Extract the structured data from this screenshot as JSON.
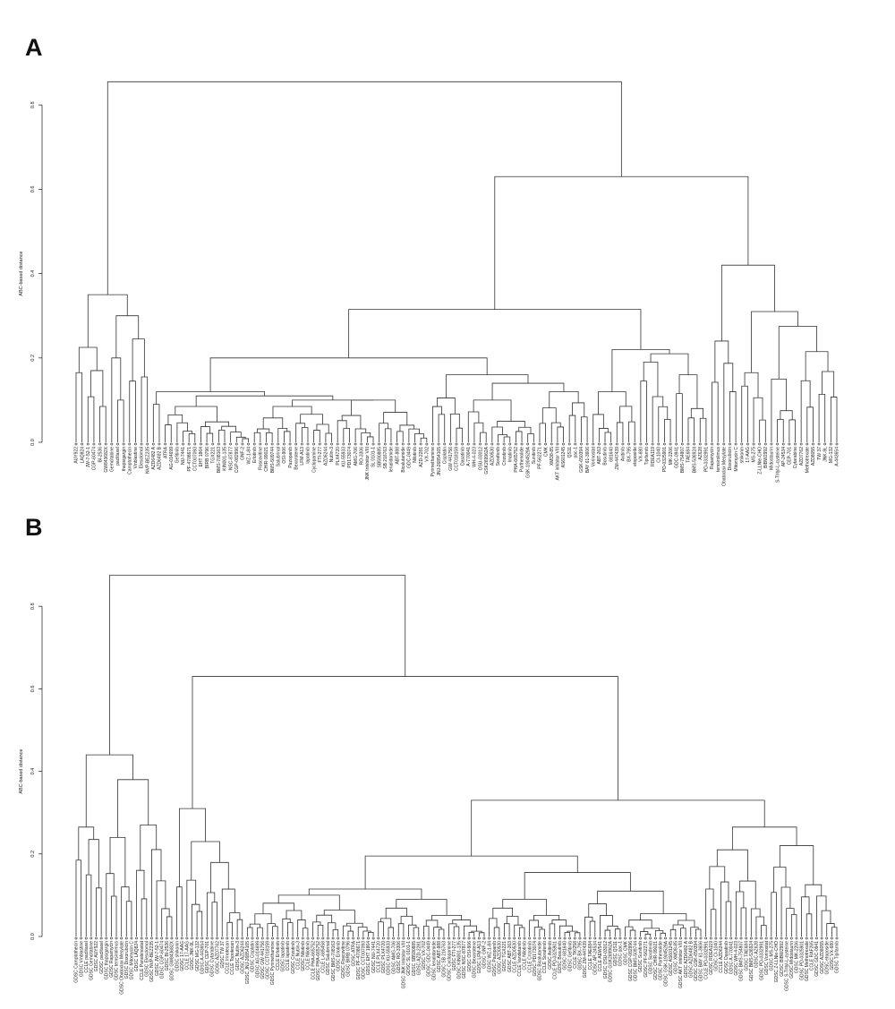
{
  "chart_data": [
    {
      "type": "dendrogram",
      "panel_label": "A",
      "ylabel": "ABC-based distance",
      "ylim": [
        0,
        0.8
      ],
      "yticks": [
        "0.0",
        "0.2",
        "0.4",
        "0.6",
        "0.8"
      ],
      "leaves": [
        "AUY922",
        "LAQ824",
        "JW-7-52-1",
        "CGP-60474",
        "BI-2536",
        "GW843682X",
        "Gemcitabine",
        "paclitaxel",
        "thapsigargin",
        "Camptothecin",
        "Vinblastine",
        "Elesclomol",
        "NVP-BEZ235",
        {
          "t": "AZD6482 A",
          "c": "#f0502a"
        },
        {
          "t": "AZD6482 B",
          "c": "#f0502a"
        },
        "ATRA",
        "AG-014699",
        "Gefitinib",
        "NU-7441",
        "PF-4708671",
        "CCT007093",
        "EHT 1864",
        "BIRB 0796",
        "TGX221",
        "BMS-708163",
        "KIN001-135",
        "NSC-87877",
        "CGP-082996",
        "GNF-2",
        "WZ-1-84",
        "Erlotinib",
        "Roscovitine",
        "CHIR-99021",
        "BMS-509744",
        "Salubrinal",
        "OSI-906",
        "Pazopanib",
        "Bexarotene",
        "LFM-A13",
        "lapatinib",
        "Cyclopamine",
        "FTI-277",
        "AZD6244",
        "Nutlin-3",
        "PLX4720",
        "KU-55933",
        "PD173074",
        "AMG-706",
        "RO-3306",
        "JNK Inhibitor VIII",
        "SL 0101-1",
        "SB590885",
        "SB 216763",
        "lenalidomide",
        "ABT-888",
        "Bicalutamide",
        "GDC-0449",
        "Nilotinib",
        "AZD-2281",
        "VX-702",
        "Pyrimethamine",
        "JNJ-26854165",
        "Cisplatin",
        "GW 441756",
        "CCT018159",
        "Dasatinib",
        "A-770041",
        "WH-4-023",
        "OSU-03012",
        "GSK269962A",
        "AZD0530",
        "Sorafenib",
        "Crizotinib",
        "Imatinib",
        "PHA-665752",
        "Parthenolide",
        "GSK-1904529A",
        "Sunitinib",
        "PF-562271",
        "CMK",
        "XMD8-85",
        "AKT inhibitor VIII",
        "AS601245",
        "QS11",
        "pac-1",
        "GSK-650394",
        "BAY 61-3606",
        "Vorinostat",
        "ABT-263",
        "Bosutinib",
        "681640",
        "ZM-447439",
        "Axitinib",
        "BX-795",
        "etoposide",
        "VX-680",
        "Tipifarnib",
        "RDEA119",
        "CI-1040",
        "PD-0325901",
        "MK-2206",
        "GDC-0941",
        "BMS-754807",
        "TAE684",
        "BMS-536924",
        "AZ628",
        "PD-0332991",
        "Rapamycin",
        "temsirolimus",
        "Obatoclax Mesylate",
        "Doxorubicin",
        "Mitomycin C",
        "shikonin",
        "17-AAG",
        "MS-275",
        "Z-LLNle-CHO",
        "BIBW2992",
        "Midostaurin",
        "S-Trityl-L-cysteine",
        "AP-24534",
        "CEP-701",
        "Cytarabine",
        "AZD7762",
        "Methotrexate",
        "AZD8055",
        "TW 37",
        "JNK-9L",
        "MG-132",
        "A-443654"
      ],
      "tree": {
        "h": 0.855,
        "c": [
          {
            "h": 0.35,
            "c": [
              {
                "h": 0.225,
                "c": [
                  {
                    "h": 0.165,
                    "r": [
                      1,
                      2
                    ]
                  },
                  {
                    "h": 0.17,
                    "r": [
                      3,
                      6
                    ]
                  }
                ]
              },
              {
                "h": 0.3,
                "c": [
                  {
                    "h": 0.2,
                    "r": [
                      7,
                      9
                    ]
                  },
                  {
                    "h": 0.245,
                    "c": [
                      {
                        "h": 0.145,
                        "r": [
                          10,
                          11
                        ]
                      },
                      {
                        "h": 0.155,
                        "r": [
                          12,
                          13
                        ]
                      }
                    ]
                  }
                ]
              }
            ]
          },
          {
            "h": 0.63,
            "c": [
              {
                "h": 0.315,
                "c": [
                  {
                    "h": 0.2,
                    "c": [
                      {
                        "h": 0.12,
                        "c": [
                          {
                            "h": 0.09,
                            "r": [
                              14,
                              15
                            ]
                          },
                          {
                            "h": 0.11,
                            "c": [
                              {
                                "h": 0.085,
                                "r": [
                                  16,
                                  30
                                ]
                              },
                              {
                                "h": 0.1,
                                "c": [
                                  {
                                    "h": 0.085,
                                    "r": [
                                      31,
                                      44
                                    ]
                                  },
                                  {
                                    "h": 0.1,
                                    "r": [
                                      45,
                                      60
                                    ]
                                  }
                                ]
                              }
                            ]
                          }
                        ]
                      },
                      {
                        "h": 0.16,
                        "c": [
                          {
                            "h": 0.105,
                            "r": [
                              61,
                              66
                            ]
                          },
                          {
                            "h": 0.14,
                            "c": [
                              {
                                "h": 0.1,
                                "r": [
                                  67,
                                  78
                                ]
                              },
                              {
                                "h": 0.12,
                                "r": [
                                  79,
                                  87
                                ]
                              }
                            ]
                          }
                        ]
                      }
                    ]
                  },
                  {
                    "h": 0.22,
                    "c": [
                      {
                        "h": 0.12,
                        "r": [
                          88,
                          95
                        ]
                      },
                      {
                        "h": 0.21,
                        "c": [
                          {
                            "h": 0.19,
                            "r": [
                              96,
                              101
                            ]
                          },
                          {
                            "h": 0.16,
                            "r": [
                              102,
                              107
                            ]
                          }
                        ]
                      }
                    ]
                  }
                ]
              },
              {
                "h": 0.42,
                "c": [
                  {
                    "h": 0.24,
                    "r": [
                      108,
                      112
                    ]
                  },
                  {
                    "h": 0.31,
                    "c": [
                      {
                        "h": 0.165,
                        "r": [
                          113,
                          117
                        ]
                      },
                      {
                        "h": 0.275,
                        "c": [
                          {
                            "h": 0.15,
                            "r": [
                              118,
                              122
                            ]
                          },
                          {
                            "h": 0.215,
                            "r": [
                              123,
                              129
                            ]
                          }
                        ]
                      }
                    ]
                  }
                ]
              }
            ]
          }
        ]
      }
    },
    {
      "type": "dendrogram",
      "panel_label": "B",
      "ylabel": "ABC-based distance",
      "ylim": [
        0,
        0.8
      ],
      "yticks": [
        "0.0",
        "0.2",
        "0.4",
        "0.6",
        "0.8"
      ],
      "leaves": [
        "GDSC Camptothecin",
        "GDSC Vinblastine",
        {
          "t": "CCLE paclitaxel",
          "c": "#f5a623"
        },
        "GDSC Gemcitabine",
        "GDSC AUY922",
        {
          "t": "GDSC paclitaxel",
          "c": "#f5a623"
        },
        "GDSC thapsigargin",
        "GDSC Rapamycin",
        "GDSC temsirolimus",
        "GDSC Obatoclax Mesylate",
        "GDSC Doxorubicin",
        "GDSC Mitomycin C",
        "GDSC LAQ824",
        "CCLE Panobinostat",
        "GDSC Elesclomol",
        "GDSC NVP-BEZ235",
        "GDSC JW-7-52-1",
        "GDSC CGP-60474",
        "GDSC BI-2536",
        "GDSC GW843682X",
        "GDSC shikonin",
        {
          "t": "GDSC 17-AAG",
          "c": "#7b6fd0"
        },
        {
          "t": "CCLE 17-AAG",
          "c": "#7b6fd0"
        },
        "GDSC JNK-9L",
        "GDSC MG-132",
        "GDSC A-443654",
        "GDSC CEP-701",
        "GDSC Cytarabine",
        "GDSC AZD7762",
        "GDSC TW 37",
        "CCLE Irinotecan",
        "CCLE Topotecan",
        {
          "t": "GDSC Nutlin-3",
          "c": "#d070d0"
        },
        {
          "t": "GDSC AZD6244",
          "c": "#d070d0"
        },
        "GDSC JNJ-26854165",
        "GDSC Cisplatin",
        "GDSC AG-014699",
        "GDSC GW 441756",
        "GDSC CCT018159",
        "GDSC Pyrimethamine",
        {
          "t": "CCLE Erlotinib",
          "c": "#f08060"
        },
        {
          "t": "GDSC lapatinib",
          "c": "#70c040"
        },
        {
          "t": "CCLE lapatinib",
          "c": "#70c040"
        },
        {
          "t": "GDSC Crizotinib",
          "c": "#a0d050"
        },
        {
          "t": "CCLE Nutlin-3",
          "c": "#a070d0"
        },
        {
          "t": "GDSC Nilotinib",
          "c": "#60d0d0"
        },
        {
          "t": "CCLE Nilotinib",
          "c": "#60d0d0"
        },
        {
          "t": "CCLE PHA-665752",
          "c": "#d08040"
        },
        {
          "t": "GDSC PHA-665752",
          "c": "#d08040"
        },
        "CCLE L-685458",
        "GDSC Salubrinal",
        "GDSC BMS-708163",
        {
          "t": "GDSC Erlotinib",
          "c": "#f08060"
        },
        "GDSC Roscovitine",
        "GDSC BIRB 0796",
        "GDSC ATRA",
        "GDSC PF-4708671",
        "GDSC CCT007093",
        "GDSC EHT 1864",
        "GDSC NU-7441",
        {
          "t": "CCLE PLX4720",
          "c": "#6a5acd"
        },
        {
          "t": "GDSC PLX4720",
          "c": "#6a5acd"
        },
        "GDSC KU-55933",
        "GDSC AMG-706",
        "GDSC RO-3306",
        "GDSC JNK Inhibitor VIII",
        "GDSC SL 0101-1",
        "GDSC SB590885",
        "GDSC AZD-2281",
        "GDSC VX-702",
        "GDSC GDC-0449",
        "GDSC lenalidomide",
        "GDSC ABT-888",
        "GDSC SB 216763",
        "GDSC Cyclopamine",
        "GDSC FTI-277",
        "GDSC KIN001-135",
        "GDSC NSC-87877",
        "GDSC OSI-906",
        "GDSC Bexarotene",
        "GDSC LFM-A13",
        "GDSC GNF-2",
        "GDSC WZ-1-84",
        "GDSC Pazopanib",
        {
          "t": "GDSC AZD0530",
          "c": "#70c040"
        },
        "GDSC TGX221",
        "GDSC ABT-263",
        {
          "t": "CCLE AZD0530",
          "c": "#70c040"
        },
        "CCLE Vandetanib",
        {
          "t": "CCLE Nilotinib",
          "c": "#60d0d0"
        },
        {
          "t": "CCLE Crizotinib",
          "c": "#a0d050"
        },
        "GDSC PD173074",
        "GDSC Bicalutamide",
        {
          "t": "CCLE Sorafenib",
          "c": "#f5d020"
        },
        "GDSC Axitinib",
        {
          "t": "CCLE PD-0325901",
          "c": "#f8b0c8"
        },
        "GDSC Bosutinib",
        "GDSC 681640",
        "GDSC Gefitinib",
        "CCLE TKI258",
        "GDSC BX-795",
        "GDSC ZM-447439",
        {
          "t": "CCLE TAE684",
          "c": "#f5d020"
        },
        "GDSC AP-24534",
        "CCLE AEW541",
        "GDSC OSU-03012",
        "GDSC GSK269962A",
        "GDSC QS11",
        "GDSC pac-1",
        "GDSC CMK",
        "GDSC CGP-082996",
        "GDSC BMS-509744",
        "GDSC Sunitinib",
        "GDSC PF-562271",
        {
          "t": "GDSC Sorafenib",
          "c": "#f5d020"
        },
        "GDSC CHIR-99021",
        "GDSC Parthenolide",
        "GDSC GSK-1904529A",
        "GDSC AS601245",
        "GDSC XMD8-85",
        "GDSC AKT inhibitor VIII",
        {
          "t": "GDSC AZD6482 A",
          "c": "#f0502a"
        },
        {
          "t": "GDSC AZD6482 B",
          "c": "#f0502a"
        },
        "GDSC GSK-650394",
        "GDSC BAY 61-3606",
        {
          "t": "CCLE PD-0332991",
          "c": "#f070a0"
        },
        "GDSC RDEA119",
        "GDSC CI-1040",
        {
          "t": "CCLE AZD6244",
          "c": "#d070d0"
        },
        "GDSC Dasatinib",
        "GDSC A-770041",
        "GDSC WH-4-023",
        "GDSC BMS-754807",
        {
          "t": "GDSC TAE684",
          "c": "#f5d020"
        },
        "GDSC BMS-536924",
        "GDSC AZ628",
        {
          "t": "GDSC PD-0332991",
          "c": "#f070a0"
        },
        "GDSC Vorinostat",
        "GDSC MS-275",
        "GDSC Z-LLNle-CHO",
        "GDSC BIBW2992",
        "GDSC S-Trityl-L-cysteine",
        "GDSC Midostaurin",
        "GDSC MK-2206",
        {
          "t": "GDSC PD-0325901",
          "c": "#f8b0c8"
        },
        "GDSC Methotrexate",
        "CCLE RAF265",
        "GDSC GDC-0941",
        "GDSC AZD8055",
        "GDSC etoposide",
        "GDSC VX-680",
        "GDSC Tipifarnib"
      ],
      "tree": {
        "h": 0.875,
        "c": [
          {
            "h": 0.44,
            "c": [
              {
                "h": 0.265,
                "c": [
                  {
                    "h": 0.185,
                    "r": [
                      1,
                      2
                    ]
                  },
                  {
                    "h": 0.235,
                    "r": [
                      3,
                      6
                    ]
                  }
                ]
              },
              {
                "h": 0.38,
                "c": [
                  {
                    "h": 0.24,
                    "r": [
                      7,
                      12
                    ]
                  },
                  {
                    "h": 0.27,
                    "r": [
                      13,
                      20
                    ]
                  }
                ]
              }
            ]
          },
          {
            "h": 0.63,
            "c": [
              {
                "h": 0.31,
                "c": [
                  {
                    "h": 0.12,
                    "r": [
                      21,
                      22
                    ]
                  },
                  {
                    "h": 0.23,
                    "r": [
                      23,
                      34
                    ]
                  }
                ]
              },
              {
                "h": 0.33,
                "c": [
                  {
                    "h": 0.195,
                    "c": [
                      {
                        "h": 0.115,
                        "c": [
                          {
                            "h": 0.1,
                            "r": [
                              35,
                              60
                            ]
                          },
                          {
                            "h": 0.09,
                            "r": [
                              61,
                              82
                            ]
                          }
                        ]
                      },
                      {
                        "h": 0.155,
                        "c": [
                          {
                            "h": 0.09,
                            "r": [
                              83,
                              101
                            ]
                          },
                          {
                            "h": 0.11,
                            "r": [
                              102,
                              125
                            ]
                          }
                        ]
                      }
                    ]
                  },
                  {
                    "h": 0.265,
                    "c": [
                      {
                        "h": 0.21,
                        "r": [
                          126,
                          138
                        ]
                      },
                      {
                        "h": 0.22,
                        "r": [
                          139,
                          152
                        ]
                      }
                    ]
                  }
                ]
              }
            ]
          }
        ]
      }
    }
  ]
}
